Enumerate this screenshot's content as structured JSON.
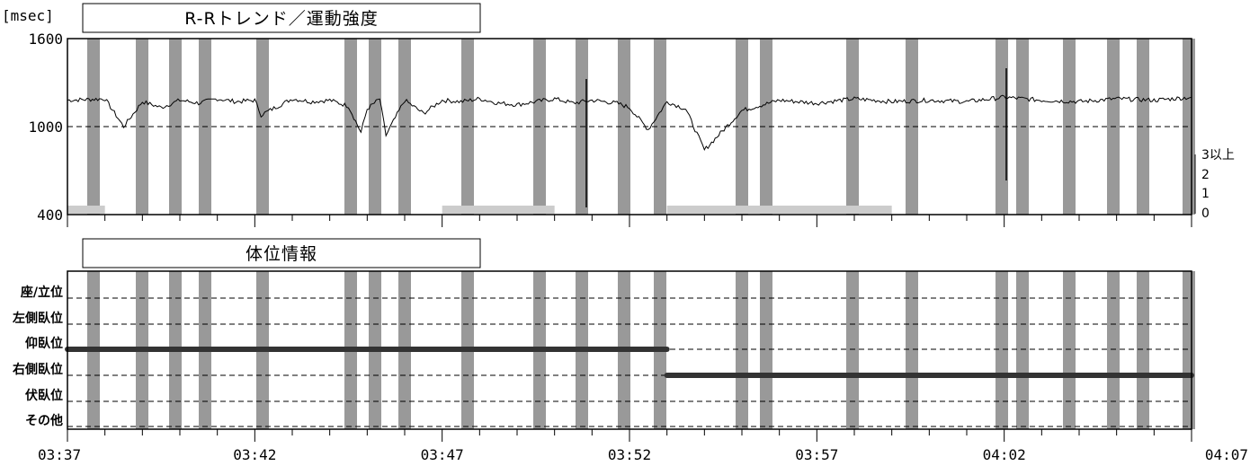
{
  "chart_data": [
    {
      "type": "line",
      "title": "R-Rトレンド／運動強度",
      "ylabel": "[msec]",
      "ylim": [
        400,
        1600
      ],
      "yticks": [
        "400",
        "1000",
        "1600"
      ],
      "reference_line": 1000,
      "right_axis_labels": [
        "0",
        "1",
        "2",
        "3以上"
      ],
      "x_range": [
        "03:37",
        "04:07"
      ],
      "x_tick_labels": [
        "03:37",
        "03:42",
        "03:47",
        "03:52",
        "03:57",
        "04:02",
        "04:07"
      ],
      "rr_series": {
        "x": [
          "03:37",
          "03:38",
          "03:38:30",
          "03:39",
          "03:39:30",
          "03:40",
          "03:40:30",
          "03:41",
          "03:41:30",
          "03:42",
          "03:42:10",
          "03:43",
          "03:43:30",
          "03:44",
          "03:44:30",
          "03:44:50",
          "03:45",
          "03:45:20",
          "03:45:30",
          "03:46",
          "03:46:30",
          "03:47",
          "03:47:30",
          "03:48",
          "03:48:30",
          "03:49",
          "03:49:30",
          "03:50",
          "03:50:30",
          "03:51",
          "03:51:20",
          "03:51:40",
          "03:52",
          "03:52:30",
          "03:53",
          "03:53:30",
          "03:54",
          "03:55",
          "03:56",
          "03:57",
          "03:58",
          "03:59",
          "04:00",
          "04:01",
          "04:02",
          "04:03",
          "04:04",
          "04:05",
          "04:06",
          "04:07"
        ],
        "values": [
          1180,
          1190,
          1000,
          1170,
          1130,
          1180,
          1160,
          1190,
          1170,
          1180,
          1080,
          1190,
          1170,
          1180,
          1140,
          960,
          1120,
          1190,
          940,
          1180,
          1090,
          1180,
          1170,
          1190,
          1160,
          1150,
          1170,
          1190,
          1160,
          1180,
          1170,
          1160,
          1130,
          980,
          1170,
          1120,
          840,
          1110,
          1180,
          1160,
          1190,
          1170,
          1180,
          1170,
          1200,
          1180,
          1170,
          1190,
          1180,
          1200
        ]
      },
      "activity_periods": [
        {
          "start": "03:37",
          "end": "03:38",
          "level": 0.2
        },
        {
          "start": "03:47",
          "end": "03:50",
          "level": 0.2
        },
        {
          "start": "03:53",
          "end": "03:59",
          "level": 0.2
        }
      ]
    },
    {
      "type": "line",
      "title": "体位情報",
      "categories": [
        "座/立位",
        "左側臥位",
        "仰臥位",
        "右側臥位",
        "伏臥位",
        "その他"
      ],
      "posture_segments": [
        {
          "start": "03:37",
          "end": "03:53",
          "posture": "仰臥位"
        },
        {
          "start": "03:53",
          "end": "04:07",
          "posture": "右側臥位"
        }
      ]
    }
  ],
  "colors": {
    "event_band": "#999999",
    "activity": "#cccccc",
    "posture_line": "#333333",
    "trace": "#000000"
  }
}
